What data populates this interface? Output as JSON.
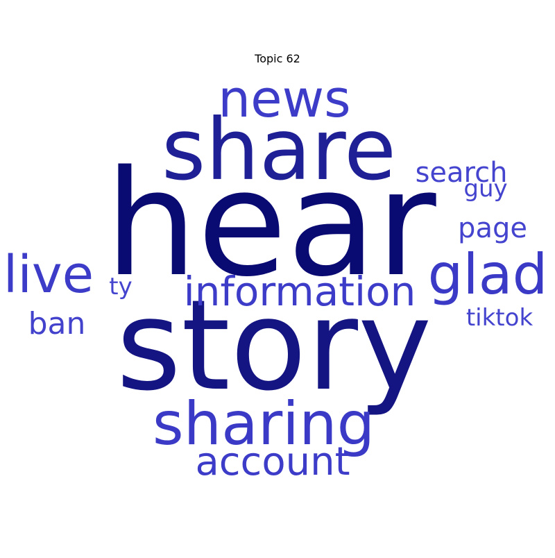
{
  "chart_data": {
    "type": "wordcloud",
    "title": "Topic 62",
    "words": [
      {
        "text": "hear",
        "weight": 1.0,
        "color": "#0a0a73"
      },
      {
        "text": "story",
        "weight": 0.86,
        "color": "#141483"
      },
      {
        "text": "share",
        "weight": 0.58,
        "color": "#1f1f96"
      },
      {
        "text": "sharing",
        "weight": 0.41,
        "color": "#3a3ac6"
      },
      {
        "text": "news",
        "weight": 0.35,
        "color": "#3c3cc9"
      },
      {
        "text": "glad",
        "weight": 0.38,
        "color": "#3a3ac6"
      },
      {
        "text": "live",
        "weight": 0.35,
        "color": "#3c3cc9"
      },
      {
        "text": "information",
        "weight": 0.28,
        "color": "#3c3cc9"
      },
      {
        "text": "account",
        "weight": 0.27,
        "color": "#3c3cc9"
      },
      {
        "text": "ban",
        "weight": 0.2,
        "color": "#4242cc"
      },
      {
        "text": "page",
        "weight": 0.19,
        "color": "#4444cf"
      },
      {
        "text": "search",
        "weight": 0.19,
        "color": "#4444cf"
      },
      {
        "text": "tiktok",
        "weight": 0.16,
        "color": "#4444cf"
      },
      {
        "text": "guy",
        "weight": 0.16,
        "color": "#4444cf"
      },
      {
        "text": "ty",
        "weight": 0.15,
        "color": "#4444cf"
      }
    ]
  }
}
